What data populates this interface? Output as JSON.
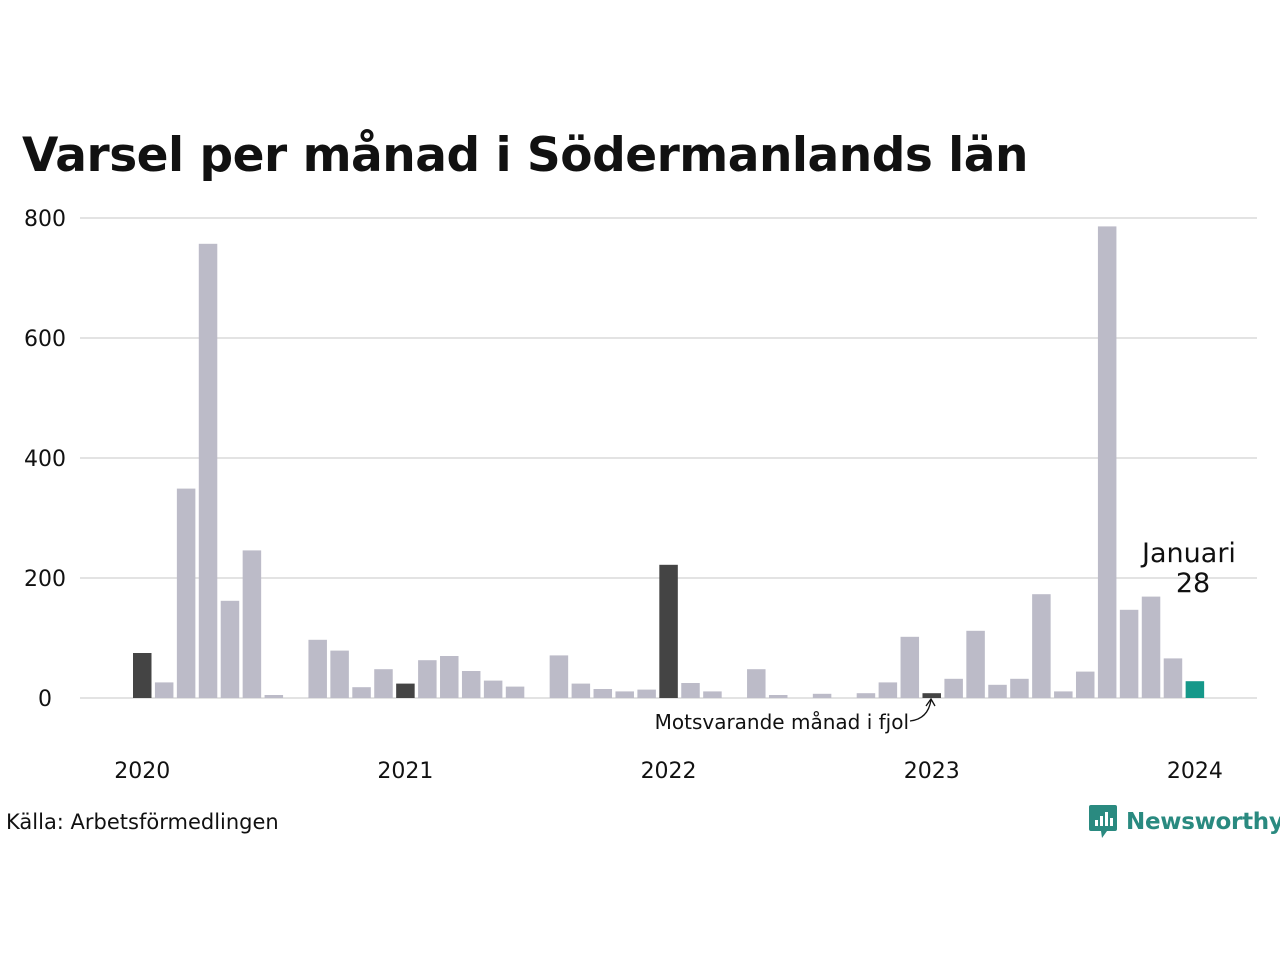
{
  "title": "Varsel per månad i Södermanlands län",
  "source": "Källa: Arbetsförmedlingen",
  "brand": "Newsworthy",
  "colors": {
    "bar": "#bcbbc8",
    "highlight_prev_year": "#444444",
    "current": "#16988a",
    "grid": "#e3e3e3",
    "brand": "#2a8a80"
  },
  "chart_data": {
    "type": "bar",
    "title": "Varsel per månad i Södermanlands län",
    "ylim": [
      0,
      800
    ],
    "yticks": [
      "0",
      "200",
      "400",
      "600",
      "800"
    ],
    "ytick_values": [
      0,
      200,
      400,
      600,
      800
    ],
    "xtick_labels": [
      "2020",
      "2021",
      "2022",
      "2023",
      "2024"
    ],
    "xtick_index": [
      0,
      12,
      24,
      36,
      48
    ],
    "grid": true,
    "categories": [
      "2020-01",
      "2020-02",
      "2020-03",
      "2020-04",
      "2020-05",
      "2020-06",
      "2020-07",
      "2020-08",
      "2020-09",
      "2020-10",
      "2020-11",
      "2020-12",
      "2021-01",
      "2021-02",
      "2021-03",
      "2021-04",
      "2021-05",
      "2021-06",
      "2021-07",
      "2021-08",
      "2021-09",
      "2021-10",
      "2021-11",
      "2021-12",
      "2022-01",
      "2022-02",
      "2022-03",
      "2022-04",
      "2022-05",
      "2022-06",
      "2022-07",
      "2022-08",
      "2022-09",
      "2022-10",
      "2022-11",
      "2022-12",
      "2023-01",
      "2023-02",
      "2023-03",
      "2023-04",
      "2023-05",
      "2023-06",
      "2023-07",
      "2023-08",
      "2023-09",
      "2023-10",
      "2023-11",
      "2023-12",
      "2024-01"
    ],
    "values": [
      75,
      26,
      349,
      757,
      162,
      246,
      5,
      0,
      97,
      79,
      18,
      48,
      24,
      63,
      70,
      45,
      29,
      19,
      0,
      71,
      24,
      15,
      11,
      14,
      222,
      25,
      11,
      0,
      48,
      5,
      0,
      7,
      0,
      8,
      26,
      102,
      8,
      32,
      112,
      22,
      32,
      173,
      11,
      44,
      786,
      147,
      169,
      66,
      28
    ],
    "highlight_indices": [
      0,
      12,
      24,
      36
    ],
    "current_index": 48,
    "annotations": {
      "current_label": "Januari",
      "current_value": "28",
      "prev_year_label": "Motsvarande månad i fjol"
    }
  }
}
